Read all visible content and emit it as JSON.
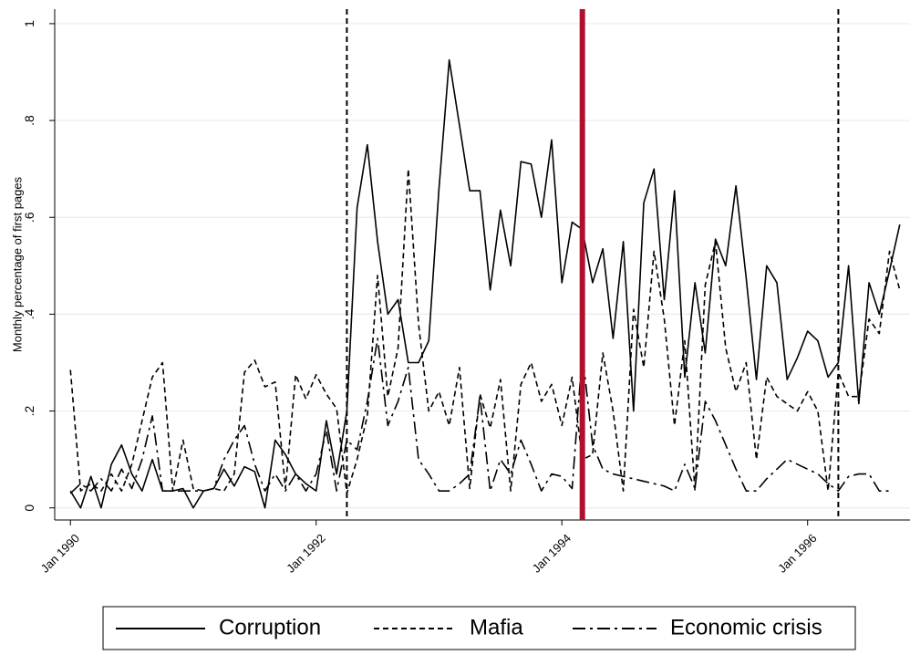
{
  "chart_data": {
    "type": "line",
    "y_label": "Monthly percentage of first pages",
    "x": [
      "1990-01",
      "1990-02",
      "1990-03",
      "1990-04",
      "1990-05",
      "1990-06",
      "1990-07",
      "1990-08",
      "1990-09",
      "1990-10",
      "1990-11",
      "1990-12",
      "1991-01",
      "1991-02",
      "1991-03",
      "1991-04",
      "1991-05",
      "1991-06",
      "1991-07",
      "1991-08",
      "1991-09",
      "1991-10",
      "1991-11",
      "1991-12",
      "1992-01",
      "1992-02",
      "1992-03",
      "1992-04",
      "1992-05",
      "1992-06",
      "1992-07",
      "1992-08",
      "1992-09",
      "1992-10",
      "1992-11",
      "1992-12",
      "1993-01",
      "1993-02",
      "1993-03",
      "1993-04",
      "1993-05",
      "1993-06",
      "1993-07",
      "1993-08",
      "1993-09",
      "1993-10",
      "1993-11",
      "1993-12",
      "1994-01",
      "1994-02",
      "1994-03",
      "1994-04",
      "1994-05",
      "1994-06",
      "1994-07",
      "1994-08",
      "1994-09",
      "1994-10",
      "1994-11",
      "1994-12",
      "1995-01",
      "1995-02",
      "1995-03",
      "1995-04",
      "1995-05",
      "1995-06",
      "1995-07",
      "1995-08",
      "1995-09",
      "1995-10",
      "1995-11",
      "1995-12",
      "1996-01",
      "1996-02",
      "1996-03",
      "1996-04",
      "1996-05",
      "1996-06",
      "1996-07",
      "1996-08",
      "1996-09",
      "1996-10"
    ],
    "series": [
      {
        "name": "Corruption",
        "color": "#000000",
        "dash": "solid",
        "values": [
          0.035,
          0,
          0.065,
          0,
          0.09,
          0.13,
          0.07,
          0.035,
          0.1,
          0.035,
          0.035,
          0.04,
          0,
          0.035,
          0.04,
          0.08,
          0.045,
          0.085,
          0.075,
          0,
          0.14,
          0.11,
          0.07,
          0.05,
          0.035,
          0.18,
          0.07,
          0.2,
          0.62,
          0.75,
          0.55,
          0.4,
          0.43,
          0.3,
          0.3,
          0.345,
          0.66,
          0.925,
          0.79,
          0.655,
          0.655,
          0.45,
          0.615,
          0.5,
          0.715,
          0.71,
          0.6,
          0.76,
          0.465,
          0.59,
          0.575,
          0.465,
          0.535,
          0.35,
          0.55,
          0.2,
          0.63,
          0.7,
          0.43,
          0.655,
          0.27,
          0.465,
          0.32,
          0.555,
          0.5,
          0.665,
          0.475,
          0.265,
          0.5,
          0.465,
          0.265,
          0.31,
          0.365,
          0.345,
          0.27,
          0.3,
          0.5,
          0.215,
          0.465,
          0.4,
          0.49,
          0.585
        ]
      },
      {
        "name": "Mafia",
        "color": "#000000",
        "dash": "dashed",
        "values": [
          0.285,
          0.035,
          0.05,
          0.035,
          0.07,
          0.035,
          0.09,
          0.18,
          0.27,
          0.3,
          0.035,
          0.14,
          0.04,
          0.035,
          0.04,
          0.035,
          0.07,
          0.28,
          0.305,
          0.25,
          0.26,
          0.04,
          0.275,
          0.225,
          0.275,
          0.235,
          0.205,
          0.03,
          0.1,
          0.19,
          0.48,
          0.23,
          0.33,
          0.7,
          0.38,
          0.2,
          0.24,
          0.17,
          0.29,
          0.04,
          0.235,
          0.165,
          0.265,
          0.035,
          0.255,
          0.3,
          0.22,
          0.255,
          0.17,
          0.27,
          0.1,
          0.11,
          0.32,
          0.2,
          0.035,
          0.41,
          0.29,
          0.53,
          0.39,
          0.17,
          0.345,
          0.035,
          0.46,
          0.55,
          0.33,
          0.24,
          0.3,
          0.1,
          0.27,
          0.23,
          0.215,
          0.2,
          0.24,
          0.2,
          0.035,
          0.28,
          0.23,
          0.23,
          0.39,
          0.36,
          0.53,
          0.45
        ]
      },
      {
        "name": "Economic crisis",
        "color": "#000000",
        "dash": "dashdot",
        "values": [
          0.03,
          0.05,
          0.035,
          0.06,
          0.035,
          0.08,
          0.04,
          0.1,
          0.19,
          0.035,
          0.035,
          0.035,
          0.035,
          0.035,
          0.04,
          0.1,
          0.14,
          0.17,
          0.09,
          0.035,
          0.07,
          0.035,
          0.07,
          0.035,
          0.07,
          0.16,
          0.035,
          0.14,
          0.12,
          0.22,
          0.35,
          0.17,
          0.22,
          0.29,
          0.1,
          0.07,
          0.035,
          0.035,
          0.05,
          0.07,
          0.23,
          0.035,
          0.1,
          0.07,
          0.14,
          0.09,
          0.035,
          0.07,
          0.065,
          0.04,
          0.32,
          0.13,
          0.08,
          0.07,
          0.065,
          0.06,
          0.055,
          0.05,
          0.045,
          0.035,
          0.09,
          0.04,
          0.22,
          0.18,
          0.13,
          0.08,
          0.035,
          0.035,
          0.06,
          0.08,
          0.1,
          0.09,
          0.08,
          0.07,
          0.05,
          0.035,
          0.065,
          0.07,
          0.07,
          0.035,
          0.035,
          null
        ]
      }
    ],
    "vlines": [
      {
        "x": "1992-04",
        "color": "#000000",
        "dash": "dashed"
      },
      {
        "x": "1994-03",
        "color": "#b0102c",
        "dash": "solid"
      },
      {
        "x": "1996-04",
        "color": "#000000",
        "dash": "dashed"
      }
    ],
    "xlim": [
      "1989-11-15",
      "1996-11-01"
    ],
    "xticks": [
      {
        "value": "1990-01",
        "label": "Jan 1990"
      },
      {
        "value": "1992-01",
        "label": "Jan 1992"
      },
      {
        "value": "1994-01",
        "label": "Jan 1994"
      },
      {
        "value": "1996-01",
        "label": "Jan 1996"
      }
    ],
    "ylim": [
      -0.025,
      1.03
    ],
    "yticks": [
      0,
      {
        "value": 0.2,
        "label": ".2"
      },
      {
        "value": 0.4,
        "label": ".4"
      },
      {
        "value": 0.6,
        "label": ".6"
      },
      {
        "value": 0.8,
        "label": ".8"
      },
      1
    ],
    "grid": true,
    "legend": "bottom"
  }
}
